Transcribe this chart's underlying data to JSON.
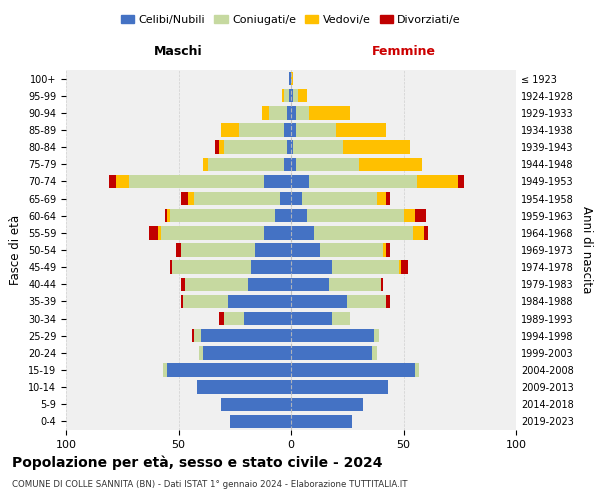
{
  "age_groups": [
    "0-4",
    "5-9",
    "10-14",
    "15-19",
    "20-24",
    "25-29",
    "30-34",
    "35-39",
    "40-44",
    "45-49",
    "50-54",
    "55-59",
    "60-64",
    "65-69",
    "70-74",
    "75-79",
    "80-84",
    "85-89",
    "90-94",
    "95-99",
    "100+"
  ],
  "birth_years": [
    "2019-2023",
    "2014-2018",
    "2009-2013",
    "2004-2008",
    "1999-2003",
    "1994-1998",
    "1989-1993",
    "1984-1988",
    "1979-1983",
    "1974-1978",
    "1969-1973",
    "1964-1968",
    "1959-1963",
    "1954-1958",
    "1949-1953",
    "1944-1948",
    "1939-1943",
    "1934-1938",
    "1929-1933",
    "1924-1928",
    "≤ 1923"
  ],
  "maschi": {
    "celibi": [
      27,
      31,
      42,
      55,
      39,
      40,
      21,
      28,
      19,
      18,
      16,
      12,
      7,
      5,
      12,
      3,
      2,
      3,
      2,
      1,
      1
    ],
    "coniugati": [
      0,
      0,
      0,
      2,
      2,
      3,
      9,
      20,
      28,
      35,
      33,
      46,
      47,
      38,
      60,
      34,
      28,
      20,
      8,
      2,
      0
    ],
    "vedovi": [
      0,
      0,
      0,
      0,
      0,
      0,
      0,
      0,
      0,
      0,
      0,
      1,
      1,
      3,
      6,
      2,
      2,
      8,
      3,
      1,
      0
    ],
    "divorziati": [
      0,
      0,
      0,
      0,
      0,
      1,
      2,
      1,
      2,
      1,
      2,
      4,
      1,
      3,
      3,
      0,
      2,
      0,
      0,
      0,
      0
    ]
  },
  "femmine": {
    "nubili": [
      27,
      32,
      43,
      55,
      36,
      37,
      18,
      25,
      17,
      18,
      13,
      10,
      7,
      5,
      8,
      2,
      1,
      2,
      2,
      1,
      0
    ],
    "coniugate": [
      0,
      0,
      0,
      2,
      2,
      2,
      8,
      17,
      23,
      30,
      28,
      44,
      43,
      33,
      48,
      28,
      22,
      18,
      6,
      2,
      0
    ],
    "vedove": [
      0,
      0,
      0,
      0,
      0,
      0,
      0,
      0,
      0,
      1,
      1,
      5,
      5,
      4,
      18,
      28,
      30,
      22,
      18,
      4,
      1
    ],
    "divorziate": [
      0,
      0,
      0,
      0,
      0,
      0,
      0,
      2,
      1,
      3,
      2,
      2,
      5,
      2,
      3,
      0,
      0,
      0,
      0,
      0,
      0
    ]
  },
  "colors": {
    "celibi": "#4472c4",
    "coniugati": "#c6d9a0",
    "vedovi": "#ffc000",
    "divorziati": "#c00000"
  },
  "title": "Popolazione per età, sesso e stato civile - 2024",
  "subtitle": "COMUNE DI COLLE SANNITA (BN) - Dati ISTAT 1° gennaio 2024 - Elaborazione TUTTITALIA.IT",
  "xlabel_left": "Maschi",
  "xlabel_right": "Femmine",
  "ylabel_left": "Fasce di età",
  "ylabel_right": "Anni di nascita",
  "xlim": 100,
  "legend_labels": [
    "Celibi/Nubili",
    "Coniugati/e",
    "Vedovi/e",
    "Divorziati/e"
  ],
  "background_color": "#ffffff",
  "plot_bg_color": "#f0f0f0",
  "grid_color": "#cccccc"
}
